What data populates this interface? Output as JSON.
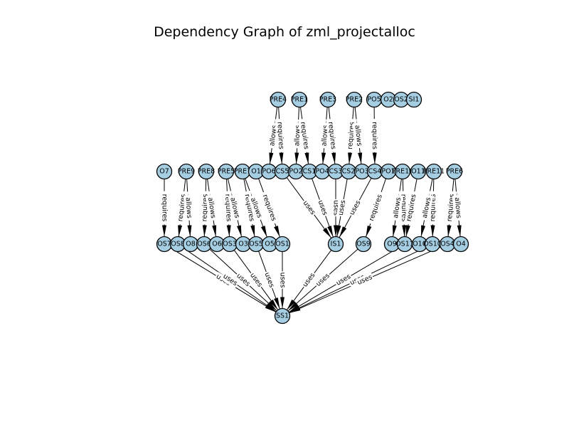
{
  "title": "Dependency Graph of zml_projectalloc",
  "colors": {
    "node_fill": "#a6cee3",
    "stroke": "#000000",
    "background": "#ffffff"
  },
  "nodes": [
    {
      "id": "PRE4",
      "label": "PRE4"
    },
    {
      "id": "PRE1",
      "label": "PRE1"
    },
    {
      "id": "PRE3",
      "label": "PRE3"
    },
    {
      "id": "PRE2",
      "label": "PRE2"
    },
    {
      "id": "PO5",
      "label": "PO5"
    },
    {
      "id": "O2",
      "label": "O2"
    },
    {
      "id": "OS2",
      "label": "OS2"
    },
    {
      "id": "SI1",
      "label": "SI1"
    },
    {
      "id": "O7",
      "label": "O7"
    },
    {
      "id": "PRE9",
      "label": "PRE9"
    },
    {
      "id": "PRE8",
      "label": "PRE8"
    },
    {
      "id": "PRE5",
      "label": "PRE5"
    },
    {
      "id": "PRE7",
      "label": "PRE7"
    },
    {
      "id": "O1",
      "label": "O1"
    },
    {
      "id": "PO6",
      "label": "PO6"
    },
    {
      "id": "CS5",
      "label": "CS5"
    },
    {
      "id": "PO2",
      "label": "PO2"
    },
    {
      "id": "CS1",
      "label": "CS1"
    },
    {
      "id": "PO4",
      "label": "PO4"
    },
    {
      "id": "CS3",
      "label": "CS3"
    },
    {
      "id": "CS2",
      "label": "CS2"
    },
    {
      "id": "PO3",
      "label": "PO3"
    },
    {
      "id": "CS4",
      "label": "CS4"
    },
    {
      "id": "PO1",
      "label": "PO1"
    },
    {
      "id": "PRE10",
      "label": "PRE10"
    },
    {
      "id": "O11",
      "label": "O11"
    },
    {
      "id": "PRE11",
      "label": "PRE11"
    },
    {
      "id": "PRE6",
      "label": "PRE6"
    },
    {
      "id": "OS7",
      "label": "OS7"
    },
    {
      "id": "OS8",
      "label": "OS8"
    },
    {
      "id": "O8",
      "label": "O8"
    },
    {
      "id": "OS6",
      "label": "OS6"
    },
    {
      "id": "O6",
      "label": "O6"
    },
    {
      "id": "OS3",
      "label": "OS3"
    },
    {
      "id": "O3",
      "label": "O3"
    },
    {
      "id": "OS5",
      "label": "OS5"
    },
    {
      "id": "O5",
      "label": "O5"
    },
    {
      "id": "OS1",
      "label": "OS1"
    },
    {
      "id": "IS1",
      "label": "IS1"
    },
    {
      "id": "OS9",
      "label": "OS9"
    },
    {
      "id": "O9",
      "label": "O9"
    },
    {
      "id": "OS11",
      "label": "OS11"
    },
    {
      "id": "O10",
      "label": "O10"
    },
    {
      "id": "OS10",
      "label": "OS10"
    },
    {
      "id": "OS4",
      "label": "OS4"
    },
    {
      "id": "O4",
      "label": "O4"
    },
    {
      "id": "SS1",
      "label": "SS1"
    }
  ],
  "edges": [
    {
      "from": "PRE4",
      "to": "PO6",
      "label": "allows"
    },
    {
      "from": "PRE4",
      "to": "CS5",
      "label": "requires"
    },
    {
      "from": "PRE1",
      "to": "PO2",
      "label": "allows"
    },
    {
      "from": "PRE1",
      "to": "CS1",
      "label": "requires"
    },
    {
      "from": "PRE3",
      "to": "PO4",
      "label": "allows"
    },
    {
      "from": "PRE3",
      "to": "CS3",
      "label": "requires"
    },
    {
      "from": "PRE2",
      "to": "CS2",
      "label": "requires"
    },
    {
      "from": "PRE2",
      "to": "PO3",
      "label": "allows"
    },
    {
      "from": "PO5",
      "to": "CS4",
      "label": "requires"
    },
    {
      "from": "O7",
      "to": "OS7",
      "label": "requires"
    },
    {
      "from": "PRE9",
      "to": "OS8",
      "label": "requires"
    },
    {
      "from": "PRE9",
      "to": "O8",
      "label": "allows"
    },
    {
      "from": "PRE8",
      "to": "OS6",
      "label": "requires"
    },
    {
      "from": "PRE8",
      "to": "O6",
      "label": "allows"
    },
    {
      "from": "PRE5",
      "to": "OS3",
      "label": "requires"
    },
    {
      "from": "PRE5",
      "to": "O3",
      "label": "allows"
    },
    {
      "from": "PRE7",
      "to": "OS5",
      "label": "requires"
    },
    {
      "from": "PRE7",
      "to": "O5",
      "label": "allows"
    },
    {
      "from": "O1",
      "to": "OS1",
      "label": "requires"
    },
    {
      "from": "CS5",
      "to": "IS1",
      "label": "uses"
    },
    {
      "from": "CS1",
      "to": "IS1",
      "label": "uses"
    },
    {
      "from": "CS3",
      "to": "IS1",
      "label": "uses"
    },
    {
      "from": "CS2",
      "to": "IS1",
      "label": "uses"
    },
    {
      "from": "CS4",
      "to": "IS1",
      "label": "uses"
    },
    {
      "from": "PO1",
      "to": "OS9",
      "label": "requires"
    },
    {
      "from": "PRE10",
      "to": "OS11",
      "label": "requires"
    },
    {
      "from": "PRE10",
      "to": "O9",
      "label": "allows"
    },
    {
      "from": "O11",
      "to": "OS11",
      "label": "requires"
    },
    {
      "from": "PRE11",
      "to": "OS10",
      "label": "requires"
    },
    {
      "from": "PRE11",
      "to": "O10",
      "label": "allows"
    },
    {
      "from": "PRE6",
      "to": "OS4",
      "label": "requires"
    },
    {
      "from": "PRE6",
      "to": "O4",
      "label": "allows"
    },
    {
      "from": "OS7",
      "to": "SS1",
      "label": "uses"
    },
    {
      "from": "OS8",
      "to": "SS1",
      "label": "uses"
    },
    {
      "from": "OS6",
      "to": "SS1",
      "label": "uses"
    },
    {
      "from": "OS3",
      "to": "SS1",
      "label": "uses"
    },
    {
      "from": "OS5",
      "to": "SS1",
      "label": "uses"
    },
    {
      "from": "OS1",
      "to": "SS1",
      "label": "uses"
    },
    {
      "from": "IS1",
      "to": "SS1",
      "label": "uses"
    },
    {
      "from": "OS9",
      "to": "SS1",
      "label": "uses"
    },
    {
      "from": "OS11",
      "to": "SS1",
      "label": "uses"
    },
    {
      "from": "OS10",
      "to": "SS1",
      "label": "uses"
    },
    {
      "from": "OS4",
      "to": "SS1",
      "label": "uses"
    }
  ]
}
